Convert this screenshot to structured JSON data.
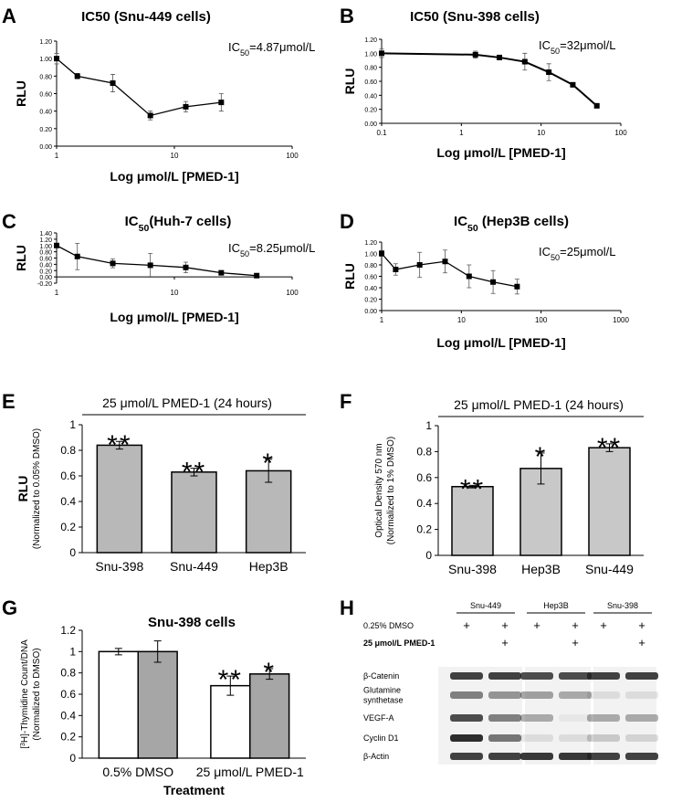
{
  "chart_data": [
    {
      "panel": "A",
      "type": "line",
      "title": "IC50 (Snu-449 cells)",
      "annotation": {
        "text": "IC",
        "sub": "50",
        "rest": "=4.87μmol/L"
      },
      "xlabel": "Log μmol/L [PMED-1]",
      "ylabel": "RLU",
      "xscale": "log",
      "x": [
        1,
        1.5,
        3,
        6.25,
        12.5,
        25
      ],
      "values": [
        1.0,
        0.8,
        0.72,
        0.35,
        0.45,
        0.5
      ],
      "errors": [
        0.06,
        0.03,
        0.1,
        0.05,
        0.06,
        0.1
      ],
      "color": "#000000",
      "xlim": [
        1,
        100
      ],
      "xticks": [
        1,
        10,
        100
      ],
      "ylim": [
        0,
        1.2
      ],
      "yticks": [
        {
          "value": 0,
          "label": "0.00"
        },
        {
          "value": 0.2,
          "label": "0.20"
        },
        {
          "value": 0.4,
          "label": "0.40"
        },
        {
          "value": 0.6,
          "label": "0.60"
        },
        {
          "value": 0.8,
          "label": "0.80"
        },
        {
          "value": 1,
          "label": "1.00"
        },
        {
          "value": 1.2,
          "label": "1.20"
        }
      ]
    },
    {
      "panel": "B",
      "type": "line",
      "title": "IC50 (Snu-398 cells)",
      "annotation": {
        "text": "IC",
        "sub": "50",
        "rest": "=32μmol/L"
      },
      "xlabel": "Log μmol/L [PMED-1]",
      "ylabel": "RLU",
      "xscale": "log",
      "x": [
        0.1,
        1.5,
        3,
        6.25,
        12.5,
        25,
        50
      ],
      "values": [
        1.0,
        0.98,
        0.94,
        0.88,
        0.73,
        0.55,
        0.25
      ],
      "errors": [
        0.06,
        0.05,
        0.02,
        0.12,
        0.12,
        0.02,
        0.02
      ],
      "color": "#000000",
      "xlim": [
        0.1,
        100
      ],
      "xticks": [
        0.1,
        1,
        10,
        100
      ],
      "ylim": [
        0,
        1.2
      ],
      "yticks": [
        {
          "value": 0,
          "label": "0.00"
        },
        {
          "value": 0.2,
          "label": "0.20"
        },
        {
          "value": 0.4,
          "label": "0.40"
        },
        {
          "value": 0.6,
          "label": "0.60"
        },
        {
          "value": 0.8,
          "label": "0.80"
        },
        {
          "value": 1,
          "label": "1.00"
        },
        {
          "value": 1.2,
          "label": "1.20"
        }
      ]
    },
    {
      "panel": "C",
      "type": "line",
      "title": {
        "text": "IC",
        "sub": "50",
        "rest": "(Huh-7 cells)"
      },
      "annotation": {
        "text": "IC",
        "sub": "50",
        "rest": "=8.25μmol/L"
      },
      "xlabel": "Log μmol/L [PMED-1]",
      "ylabel": "RLU",
      "xscale": "log",
      "x": [
        1,
        1.5,
        3,
        6.25,
        12.5,
        25,
        50
      ],
      "values": [
        1.0,
        0.65,
        0.43,
        0.37,
        0.3,
        0.13,
        0.04
      ],
      "errors": [
        0.03,
        0.42,
        0.14,
        0.38,
        0.17,
        0.06,
        0.02
      ],
      "color": "#000000",
      "xlim": [
        1,
        100
      ],
      "xticks": [
        1,
        10,
        100
      ],
      "ylim": [
        -0.2,
        1.4
      ],
      "yticks": [
        {
          "value": -0.2,
          "label": "-0.20"
        },
        {
          "value": 0,
          "label": "0.00"
        },
        {
          "value": 0.2,
          "label": "0.20"
        },
        {
          "value": 0.4,
          "label": "0.40"
        },
        {
          "value": 0.6,
          "label": "0.60"
        },
        {
          "value": 0.8,
          "label": "0.80"
        },
        {
          "value": 1,
          "label": "1.00"
        },
        {
          "value": 1.2,
          "label": "1.20"
        },
        {
          "value": 1.4,
          "label": "1.40"
        }
      ]
    },
    {
      "panel": "D",
      "type": "line",
      "title": {
        "text": "IC",
        "sub": "50",
        "rest": " (Hep3B cells)"
      },
      "annotation": {
        "text": "IC",
        "sub": "50",
        "rest": "=25μmol/L"
      },
      "xlabel": "Log μmol/L [PMED-1]",
      "ylabel": "RLU",
      "xscale": "log",
      "x": [
        1,
        1.5,
        3,
        6.25,
        12.5,
        25,
        50
      ],
      "values": [
        1.0,
        0.72,
        0.8,
        0.86,
        0.6,
        0.5,
        0.42
      ],
      "errors": [
        0.05,
        0.1,
        0.22,
        0.2,
        0.2,
        0.2,
        0.13
      ],
      "color": "#000000",
      "xlim": [
        1,
        1000
      ],
      "xticks": [
        1,
        10,
        100,
        1000
      ],
      "ylim": [
        0,
        1.2
      ],
      "yticks": [
        {
          "value": 0,
          "label": "0.00"
        },
        {
          "value": 0.2,
          "label": "0.20"
        },
        {
          "value": 0.4,
          "label": "0.40"
        },
        {
          "value": 0.6,
          "label": "0.60"
        },
        {
          "value": 0.8,
          "label": "0.80"
        },
        {
          "value": 1,
          "label": "1.00"
        },
        {
          "value": 1.2,
          "label": "1.20"
        }
      ]
    },
    {
      "panel": "E",
      "type": "bar",
      "subtitle": "25 μmol/L PMED-1 (24 hours)",
      "ylabel": [
        "RLU",
        "(Normalized to 0.05% DMSO)"
      ],
      "categories": [
        "Snu-398",
        "Snu-449",
        "Hep3B"
      ],
      "values": [
        0.84,
        0.63,
        0.64
      ],
      "errors": [
        0.03,
        0.03,
        0.09
      ],
      "significance": [
        "**",
        "**",
        "*"
      ],
      "color": "#b8b8b8",
      "ylim": [
        0,
        1
      ],
      "yticks": [
        0,
        0.2,
        0.4,
        0.6,
        0.8,
        1
      ]
    },
    {
      "panel": "F",
      "type": "bar",
      "subtitle": "25 μmol/L PMED-1 (24 hours)",
      "ylabel": [
        "Optical Density 570 nm",
        "(Normalized to 1% DMSO)"
      ],
      "categories": [
        "Snu-398",
        "Hep3B",
        "Snu-449"
      ],
      "values": [
        0.53,
        0.67,
        0.83
      ],
      "errors": [
        0.01,
        0.12,
        0.03
      ],
      "significance": [
        "**",
        "*",
        "**"
      ],
      "color": "#c8c8c8",
      "ylim": [
        0,
        1
      ],
      "yticks": [
        0,
        0.2,
        0.4,
        0.6,
        0.8,
        1
      ]
    },
    {
      "panel": "G",
      "type": "bar",
      "title": "Snu-398 cells",
      "xlabel": "Treatment",
      "ylabel": [
        {
          "text": "[",
          "sup": "3",
          "rest": "H]-Thymidine Count/DNA"
        },
        "(Normalized to DMSO)"
      ],
      "categories": [
        "0.5% DMSO",
        "25 μmol/L PMED-1"
      ],
      "series": [
        {
          "color": "#ffffff",
          "values": [
            1,
            0.68
          ],
          "errors": [
            0.03,
            0.09
          ],
          "significance": [
            null,
            "**"
          ]
        },
        {
          "color": "#a6a6a6",
          "values": [
            1,
            0.79
          ],
          "errors": [
            0.1,
            0.05
          ],
          "significance": [
            null,
            "*"
          ]
        }
      ],
      "ylim": [
        0,
        1.2
      ],
      "yticks": [
        0,
        0.2,
        0.4,
        0.6,
        0.8,
        1,
        1.2
      ]
    }
  ],
  "blot": {
    "panel": "H",
    "groups": [
      "Snu-449",
      "Hep3B",
      "Snu-398"
    ],
    "conditions": [
      {
        "label": "0.25% DMSO",
        "marks": [
          "+",
          "+",
          "+",
          "+",
          "+",
          "+"
        ]
      },
      {
        "label": "25 μmol/L PMED-1",
        "marks": [
          null,
          "+",
          null,
          "+",
          null,
          "+"
        ]
      }
    ],
    "proteins": [
      [
        "β-Catenin"
      ],
      [
        "Glutamine",
        "synthetase"
      ],
      [
        "VEGF-A"
      ],
      [
        "Cyclin D1"
      ],
      [
        "β-Actin"
      ]
    ]
  }
}
